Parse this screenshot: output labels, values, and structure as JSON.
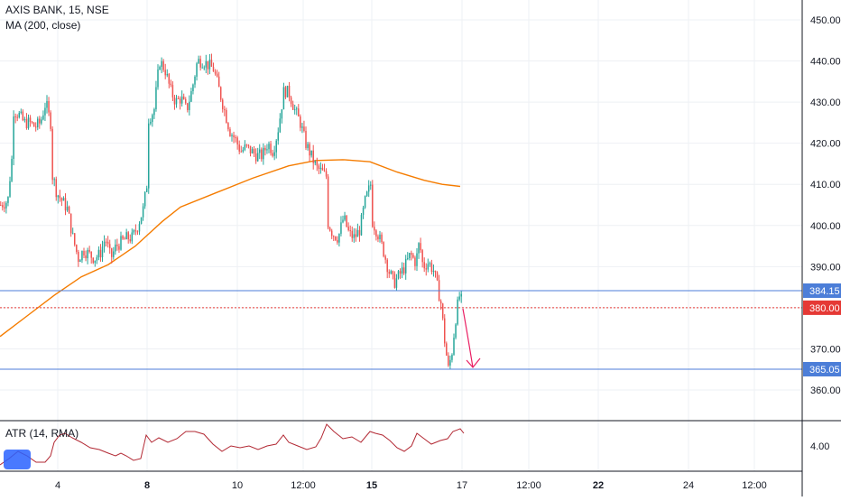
{
  "header": {
    "symbol_line": "AXIS BANK, 15, NSE",
    "indicator_line": "MA (200, close)"
  },
  "atr": {
    "label": "ATR (14, RMA)",
    "ticks": [
      "4.00"
    ],
    "color": "#b22833"
  },
  "colors": {
    "up": "#26a69a",
    "down": "#ef5350",
    "ma": "#f57c00",
    "support_line": "#4c7ed8",
    "price_line": "#e53935",
    "arrow": "#e91e63",
    "grid": "#eef0f4",
    "axis_text": "#131722"
  },
  "chart_data": {
    "type": "candlestick",
    "title": "AXIS BANK, 15, NSE",
    "y_ticks": [
      450,
      440,
      430,
      420,
      410,
      400,
      390,
      380,
      370,
      360
    ],
    "y_tick_labels": [
      "450.00",
      "440.00",
      "430.00",
      "420.00",
      "410.00",
      "400.00",
      "390.00",
      "",
      "370.00",
      "360.00"
    ],
    "ylim": [
      352,
      454
    ],
    "x_ticks": [
      "4",
      "8",
      "10",
      "12:00",
      "15",
      "17",
      "12:00",
      "22",
      "24",
      "12:00"
    ],
    "x_ticks_bold": [
      false,
      true,
      false,
      false,
      true,
      false,
      false,
      true,
      false,
      false
    ],
    "horizontal_lines": [
      {
        "value": 384.15,
        "label": "384.15",
        "style": "solid",
        "color": "#4c7ed8"
      },
      {
        "value": 380.0,
        "label": "380.00",
        "style": "dotted",
        "color": "#e53935"
      },
      {
        "value": 365.05,
        "label": "365.05",
        "style": "solid",
        "color": "#4c7ed8"
      }
    ],
    "close_path": [
      [
        0,
        405
      ],
      [
        8,
        406
      ],
      [
        12,
        416
      ],
      [
        14,
        428
      ],
      [
        20,
        427
      ],
      [
        26,
        425
      ],
      [
        32,
        425
      ],
      [
        38,
        424
      ],
      [
        44,
        425
      ],
      [
        50,
        430
      ],
      [
        55,
        425
      ],
      [
        58,
        412
      ],
      [
        62,
        408
      ],
      [
        68,
        406
      ],
      [
        74,
        404
      ],
      [
        80,
        397
      ],
      [
        86,
        392
      ],
      [
        92,
        394
      ],
      [
        98,
        393
      ],
      [
        104,
        392
      ],
      [
        110,
        393
      ],
      [
        116,
        397
      ],
      [
        122,
        392
      ],
      [
        128,
        395
      ],
      [
        134,
        396
      ],
      [
        140,
        397
      ],
      [
        146,
        397
      ],
      [
        152,
        400
      ],
      [
        158,
        404
      ],
      [
        162,
        410
      ],
      [
        164,
        426
      ],
      [
        170,
        428
      ],
      [
        176,
        440
      ],
      [
        182,
        438
      ],
      [
        188,
        433
      ],
      [
        194,
        430
      ],
      [
        200,
        431
      ],
      [
        206,
        428
      ],
      [
        212,
        433
      ],
      [
        218,
        440
      ],
      [
        224,
        440
      ],
      [
        230,
        439
      ],
      [
        236,
        438
      ],
      [
        242,
        433
      ],
      [
        248,
        428
      ],
      [
        254,
        423
      ],
      [
        260,
        421
      ],
      [
        266,
        418
      ],
      [
        272,
        419
      ],
      [
        278,
        418
      ],
      [
        284,
        417
      ],
      [
        290,
        417
      ],
      [
        296,
        420
      ],
      [
        302,
        418
      ],
      [
        308,
        424
      ],
      [
        314,
        433
      ],
      [
        320,
        432
      ],
      [
        326,
        428
      ],
      [
        332,
        425
      ],
      [
        338,
        420
      ],
      [
        344,
        417
      ],
      [
        350,
        414
      ],
      [
        356,
        413
      ],
      [
        360,
        412
      ],
      [
        362,
        401
      ],
      [
        368,
        398
      ],
      [
        374,
        397
      ],
      [
        380,
        402
      ],
      [
        386,
        398
      ],
      [
        392,
        397
      ],
      [
        398,
        399
      ],
      [
        404,
        406
      ],
      [
        410,
        410
      ],
      [
        412,
        401
      ],
      [
        418,
        398
      ],
      [
        424,
        394
      ],
      [
        430,
        389
      ],
      [
        436,
        386
      ],
      [
        442,
        388
      ],
      [
        448,
        390
      ],
      [
        454,
        393
      ],
      [
        460,
        391
      ],
      [
        464,
        396
      ],
      [
        468,
        390
      ],
      [
        474,
        391
      ],
      [
        480,
        389
      ],
      [
        484,
        385
      ],
      [
        488,
        381
      ],
      [
        492,
        372
      ],
      [
        496,
        365
      ],
      [
        500,
        369
      ],
      [
        504,
        377
      ],
      [
        508,
        383
      ],
      [
        512,
        381
      ]
    ],
    "ma_path": [
      [
        0,
        373
      ],
      [
        30,
        378
      ],
      [
        60,
        383
      ],
      [
        90,
        387.5
      ],
      [
        120,
        390.5
      ],
      [
        150,
        395
      ],
      [
        180,
        401
      ],
      [
        200,
        404.5
      ],
      [
        240,
        408
      ],
      [
        280,
        411.5
      ],
      [
        320,
        414.5
      ],
      [
        350,
        415.8
      ],
      [
        380,
        416
      ],
      [
        410,
        415.5
      ],
      [
        440,
        413
      ],
      [
        470,
        411
      ],
      [
        490,
        410
      ],
      [
        510,
        409.5
      ]
    ],
    "atr_path": [
      [
        0,
        515
      ],
      [
        10,
        508
      ],
      [
        20,
        500
      ],
      [
        30,
        505
      ],
      [
        40,
        512
      ],
      [
        50,
        512
      ],
      [
        56,
        505
      ],
      [
        60,
        490
      ],
      [
        66,
        482
      ],
      [
        72,
        480
      ],
      [
        80,
        485
      ],
      [
        90,
        490
      ],
      [
        100,
        496
      ],
      [
        110,
        498
      ],
      [
        120,
        502
      ],
      [
        128,
        505
      ],
      [
        134,
        502
      ],
      [
        140,
        505
      ],
      [
        148,
        510
      ],
      [
        156,
        508
      ],
      [
        162,
        482
      ],
      [
        168,
        490
      ],
      [
        176,
        485
      ],
      [
        186,
        490
      ],
      [
        196,
        486
      ],
      [
        206,
        478
      ],
      [
        216,
        478
      ],
      [
        226,
        481
      ],
      [
        236,
        492
      ],
      [
        246,
        500
      ],
      [
        256,
        494
      ],
      [
        266,
        496
      ],
      [
        276,
        494
      ],
      [
        286,
        498
      ],
      [
        296,
        494
      ],
      [
        306,
        492
      ],
      [
        314,
        482
      ],
      [
        320,
        490
      ],
      [
        330,
        494
      ],
      [
        340,
        498
      ],
      [
        350,
        495
      ],
      [
        356,
        485
      ],
      [
        362,
        470
      ],
      [
        370,
        478
      ],
      [
        380,
        486
      ],
      [
        390,
        484
      ],
      [
        400,
        490
      ],
      [
        410,
        478
      ],
      [
        416,
        480
      ],
      [
        424,
        482
      ],
      [
        432,
        488
      ],
      [
        440,
        496
      ],
      [
        448,
        500
      ],
      [
        456,
        494
      ],
      [
        462,
        480
      ],
      [
        470,
        486
      ],
      [
        478,
        492
      ],
      [
        488,
        488
      ],
      [
        496,
        486
      ],
      [
        502,
        478
      ],
      [
        510,
        475
      ],
      [
        514,
        480
      ]
    ],
    "arrow": {
      "from": [
        513,
        342
      ],
      "to": [
        524,
        407
      ]
    }
  }
}
